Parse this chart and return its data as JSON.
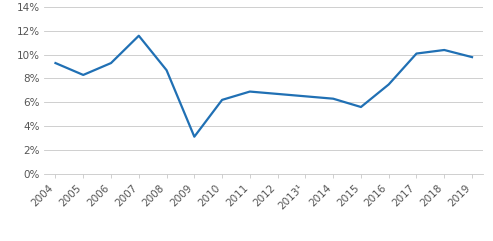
{
  "years": [
    "2004",
    "2005",
    "2006",
    "2007",
    "2008",
    "2009",
    "2010",
    "2011",
    "2012",
    "2013¹",
    "2014",
    "2015",
    "2016",
    "2017",
    "2018",
    "2019"
  ],
  "values": [
    0.093,
    0.083,
    0.093,
    0.116,
    0.087,
    0.031,
    0.062,
    0.069,
    0.067,
    0.065,
    0.063,
    0.056,
    0.075,
    0.101,
    0.104,
    0.098
  ],
  "line_color": "#2070b4",
  "line_width": 1.6,
  "background_color": "#ffffff",
  "grid_color": "#c8c8c8",
  "ylim": [
    0,
    0.14
  ],
  "yticks": [
    0,
    0.02,
    0.04,
    0.06,
    0.08,
    0.1,
    0.12,
    0.14
  ],
  "ytick_labels": [
    "0%",
    "2%",
    "4%",
    "6%",
    "8%",
    "10%",
    "12%",
    "14%"
  ],
  "tick_label_fontsize": 7.5,
  "tick_label_color": "#555555"
}
